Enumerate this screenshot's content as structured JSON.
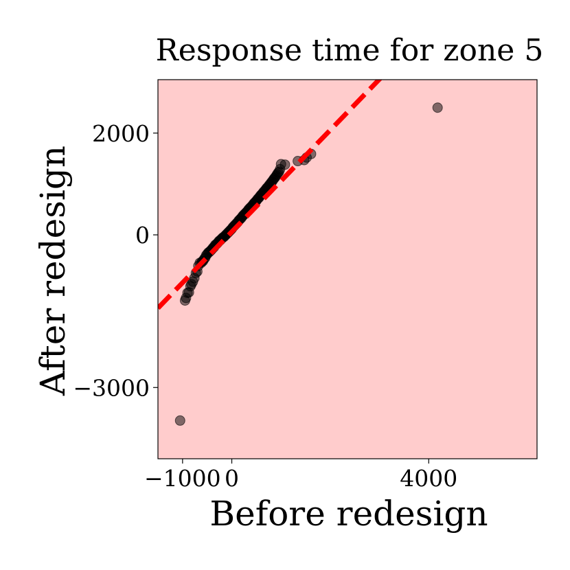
{
  "chart_data": {
    "type": "scatter",
    "title": "Response time for zone 5",
    "xlabel": "Before redesign",
    "ylabel": "After redesign",
    "xlim": [
      -1500,
      6200
    ],
    "ylim": [
      -4400,
      3050
    ],
    "xticks": [
      {
        "value": -1000,
        "label": "−1000"
      },
      {
        "value": 0,
        "label": "0"
      },
      {
        "value": 4000,
        "label": "4000"
      }
    ],
    "yticks": [
      {
        "value": 2000,
        "label": "2000"
      },
      {
        "value": 0,
        "label": "0"
      },
      {
        "value": -3000,
        "label": "−3000"
      }
    ],
    "grid": false,
    "colors": {
      "shaded_region": "#ffcccc",
      "reference_line": "#ff0000",
      "points": "#000000"
    },
    "reference_line": {
      "style": "dashed",
      "slope": 1.0,
      "intercept": 60
    },
    "series": [
      {
        "x": [
          4180,
          -1050,
          -950,
          -930,
          -900,
          -870,
          -840,
          -820,
          -790,
          -760,
          -730,
          -700,
          -680,
          -650,
          -620,
          -600,
          -580,
          -560,
          -540,
          -520,
          -500,
          -480,
          -460,
          -440,
          -420,
          -400,
          -380,
          -360,
          -340,
          -320,
          -300,
          -280,
          -260,
          -240,
          -220,
          -200,
          -180,
          -160,
          -140,
          -120,
          -100,
          -80,
          -60,
          -40,
          -20,
          0,
          20,
          40,
          60,
          80,
          100,
          120,
          140,
          160,
          180,
          200,
          220,
          240,
          260,
          280,
          300,
          320,
          340,
          360,
          380,
          400,
          420,
          440,
          460,
          480,
          500,
          520,
          540,
          560,
          580,
          600,
          620,
          640,
          660,
          680,
          700,
          720,
          740,
          760,
          780,
          800,
          820,
          840,
          860,
          880,
          900,
          920,
          940,
          960,
          980,
          1000,
          1080,
          1340,
          1470,
          1520,
          1610
        ],
        "y": [
          2500,
          -3650,
          -1290,
          -1240,
          -1140,
          -1130,
          -1010,
          -970,
          -920,
          -850,
          -750,
          -720,
          -610,
          -550,
          -550,
          -520,
          -510,
          -470,
          -450,
          -400,
          -380,
          -350,
          -340,
          -320,
          -300,
          -280,
          -250,
          -240,
          -200,
          -190,
          -170,
          -150,
          -120,
          -110,
          -90,
          -70,
          -50,
          -40,
          -20,
          0,
          20,
          40,
          60,
          80,
          100,
          120,
          150,
          170,
          190,
          210,
          230,
          250,
          280,
          300,
          320,
          340,
          370,
          390,
          410,
          430,
          450,
          470,
          500,
          520,
          540,
          560,
          580,
          610,
          630,
          650,
          670,
          700,
          720,
          740,
          770,
          790,
          810,
          840,
          860,
          880,
          910,
          930,
          950,
          980,
          1000,
          1030,
          1050,
          1080,
          1110,
          1130,
          1160,
          1190,
          1220,
          1240,
          1290,
          1390,
          1380,
          1450,
          1470,
          1520,
          1590
        ]
      }
    ]
  }
}
